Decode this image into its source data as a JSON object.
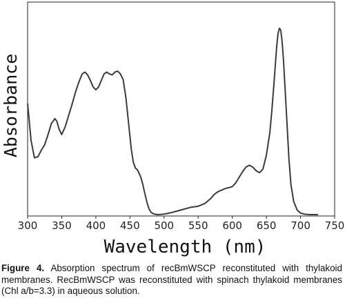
{
  "chart_data": {
    "type": "line",
    "xlabel": "Wavelength (nm)",
    "ylabel": "Absorbance",
    "xlim": [
      300,
      750
    ],
    "ylim": [
      0,
      1
    ],
    "x_ticks": [
      300,
      350,
      400,
      450,
      500,
      550,
      600,
      650,
      700,
      750
    ],
    "y_ticks_shown": false,
    "grid": false,
    "series": [
      {
        "x": [
          300,
          302,
          305,
          310,
          315,
          320,
          325,
          330,
          335,
          340,
          343,
          346,
          350,
          355,
          360,
          365,
          370,
          375,
          380,
          384,
          388,
          392,
          396,
          400,
          404,
          408,
          412,
          416,
          420,
          424,
          428,
          432,
          436,
          440,
          444,
          448,
          452,
          455,
          458,
          461,
          463,
          466,
          469,
          472,
          475,
          478,
          481,
          484,
          487,
          490,
          495,
          500,
          505,
          510,
          520,
          530,
          540,
          550,
          560,
          568,
          574,
          580,
          590,
          600,
          605,
          610,
          615,
          620,
          625,
          630,
          635,
          640,
          645,
          650,
          655,
          658,
          661,
          663,
          665,
          667,
          669,
          671,
          673,
          675,
          677,
          680,
          683,
          686,
          690,
          695,
          700,
          705,
          710,
          715,
          720,
          725
        ],
        "y": [
          0.595,
          0.52,
          0.4,
          0.305,
          0.31,
          0.345,
          0.375,
          0.43,
          0.49,
          0.515,
          0.5,
          0.46,
          0.43,
          0.47,
          0.53,
          0.59,
          0.655,
          0.71,
          0.755,
          0.765,
          0.75,
          0.72,
          0.685,
          0.67,
          0.685,
          0.72,
          0.755,
          0.765,
          0.755,
          0.75,
          0.765,
          0.77,
          0.755,
          0.725,
          0.63,
          0.49,
          0.35,
          0.28,
          0.25,
          0.24,
          0.225,
          0.2,
          0.16,
          0.11,
          0.065,
          0.03,
          0.012,
          0.005,
          0.002,
          0.0,
          0.001,
          0.003,
          0.006,
          0.01,
          0.02,
          0.03,
          0.04,
          0.045,
          0.06,
          0.085,
          0.11,
          0.125,
          0.14,
          0.15,
          0.17,
          0.2,
          0.23,
          0.255,
          0.265,
          0.255,
          0.235,
          0.225,
          0.245,
          0.32,
          0.44,
          0.56,
          0.7,
          0.8,
          0.9,
          0.97,
          1.0,
          0.99,
          0.93,
          0.83,
          0.7,
          0.5,
          0.3,
          0.16,
          0.07,
          0.025,
          0.008,
          0.003,
          0.001,
          0.0,
          0.0,
          0.0
        ]
      }
    ]
  },
  "caption": {
    "label": "Figure 4.",
    "text": " Absorption spectrum of recBmWSCP reconstituted with thylakoid membranes. RecBmWSCP was reconstituted with spinach thylakoid membranes (Chl a/b=3.3) in aqueous solution."
  }
}
